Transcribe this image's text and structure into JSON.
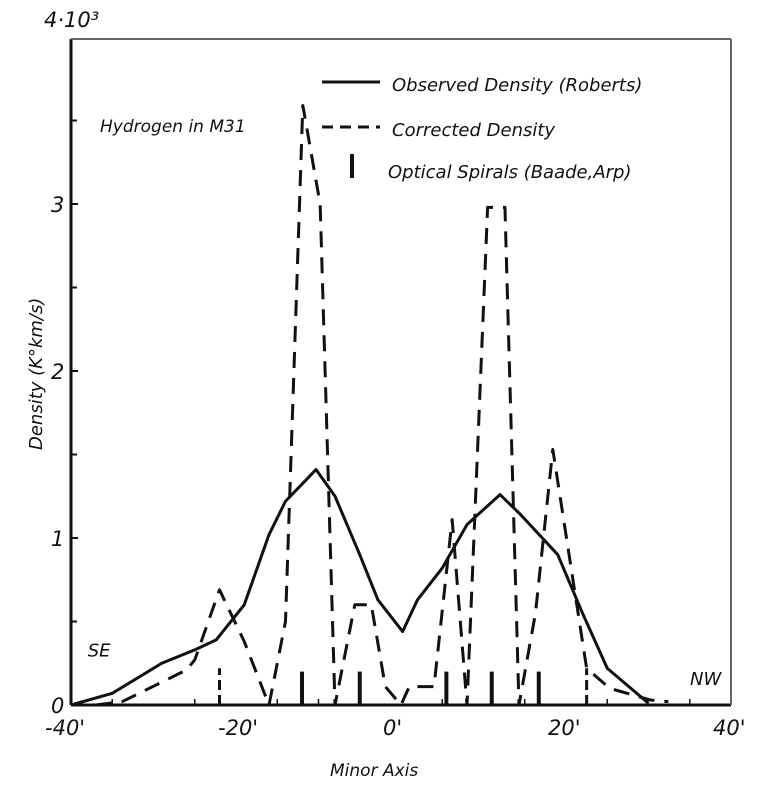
{
  "chart_data": {
    "type": "line",
    "title": "Hydrogen in M31",
    "xlabel": "Minor Axis",
    "ylabel": "Density (K°km/s)",
    "y_scale_label": "4·10³",
    "xlim": [
      -40,
      40
    ],
    "ylim": [
      0,
      4
    ],
    "x_ticks": [
      -40,
      -20,
      0,
      20,
      40
    ],
    "x_tick_labels": [
      "-40'",
      "-20'",
      "0'",
      "20'",
      "40'"
    ],
    "y_ticks": [
      0,
      1,
      2,
      3
    ],
    "y_tick_labels": [
      "0",
      "1",
      "2",
      "3"
    ],
    "y_minor_ticks": [
      0.5,
      1.5,
      2.5,
      3.5
    ],
    "grid": false,
    "legend_position": "upper right",
    "annotations": [
      {
        "text": "SE",
        "x": -37,
        "y": 0.35
      },
      {
        "text": "NW",
        "x": 36,
        "y": 0.18
      }
    ],
    "series": [
      {
        "name": "Observed Density (Roberts)",
        "style": "solid",
        "x": [
          -40,
          -35,
          -29,
          -25,
          -22.4,
          -19,
          -16,
          -14,
          -10.3,
          -8,
          -5,
          -2.8,
          0.2,
          2,
          5,
          8,
          12,
          14.5,
          19,
          22,
          25,
          30
        ],
        "y": [
          0,
          0.07,
          0.25,
          0.33,
          0.39,
          0.6,
          1.02,
          1.22,
          1.41,
          1.25,
          0.9,
          0.63,
          0.44,
          0.63,
          0.82,
          1.08,
          1.26,
          1.14,
          0.9,
          0.55,
          0.22,
          0.01
        ]
      },
      {
        "name": "Corrected Density",
        "style": "dashed",
        "x": [
          -37,
          -33.8,
          -26,
          -25,
          -22,
          -19,
          -16,
          -14,
          -11.9,
          -9.8,
          -8,
          -5.6,
          -3.6,
          -1.9,
          0,
          1,
          4,
          6.2,
          8,
          10.5,
          12.6,
          14.3,
          16.3,
          18.4,
          22.5,
          25.3,
          30.2,
          32.4
        ],
        "y": [
          0,
          0.02,
          0.21,
          0.27,
          0.69,
          0.38,
          0,
          0.5,
          3.59,
          3.0,
          0,
          0.6,
          0.6,
          0.11,
          0,
          0.11,
          0.11,
          1.11,
          0,
          2.98,
          2.98,
          0,
          0.55,
          1.53,
          0.22,
          0.1,
          0.03,
          0.02
        ]
      },
      {
        "name": "Optical Spirals (Baade, Arp)",
        "style": "bars",
        "x": [
          -22,
          -12,
          -5,
          5.5,
          11,
          16.7,
          22.5
        ],
        "y": [
          0.22,
          0.2,
          0.2,
          0.2,
          0.2,
          0.2,
          0.22
        ]
      }
    ]
  },
  "legend": {
    "items": [
      "Observed Density (Roberts)",
      "Corrected Density",
      "Optical Spirals (Baade,Arp)"
    ]
  }
}
